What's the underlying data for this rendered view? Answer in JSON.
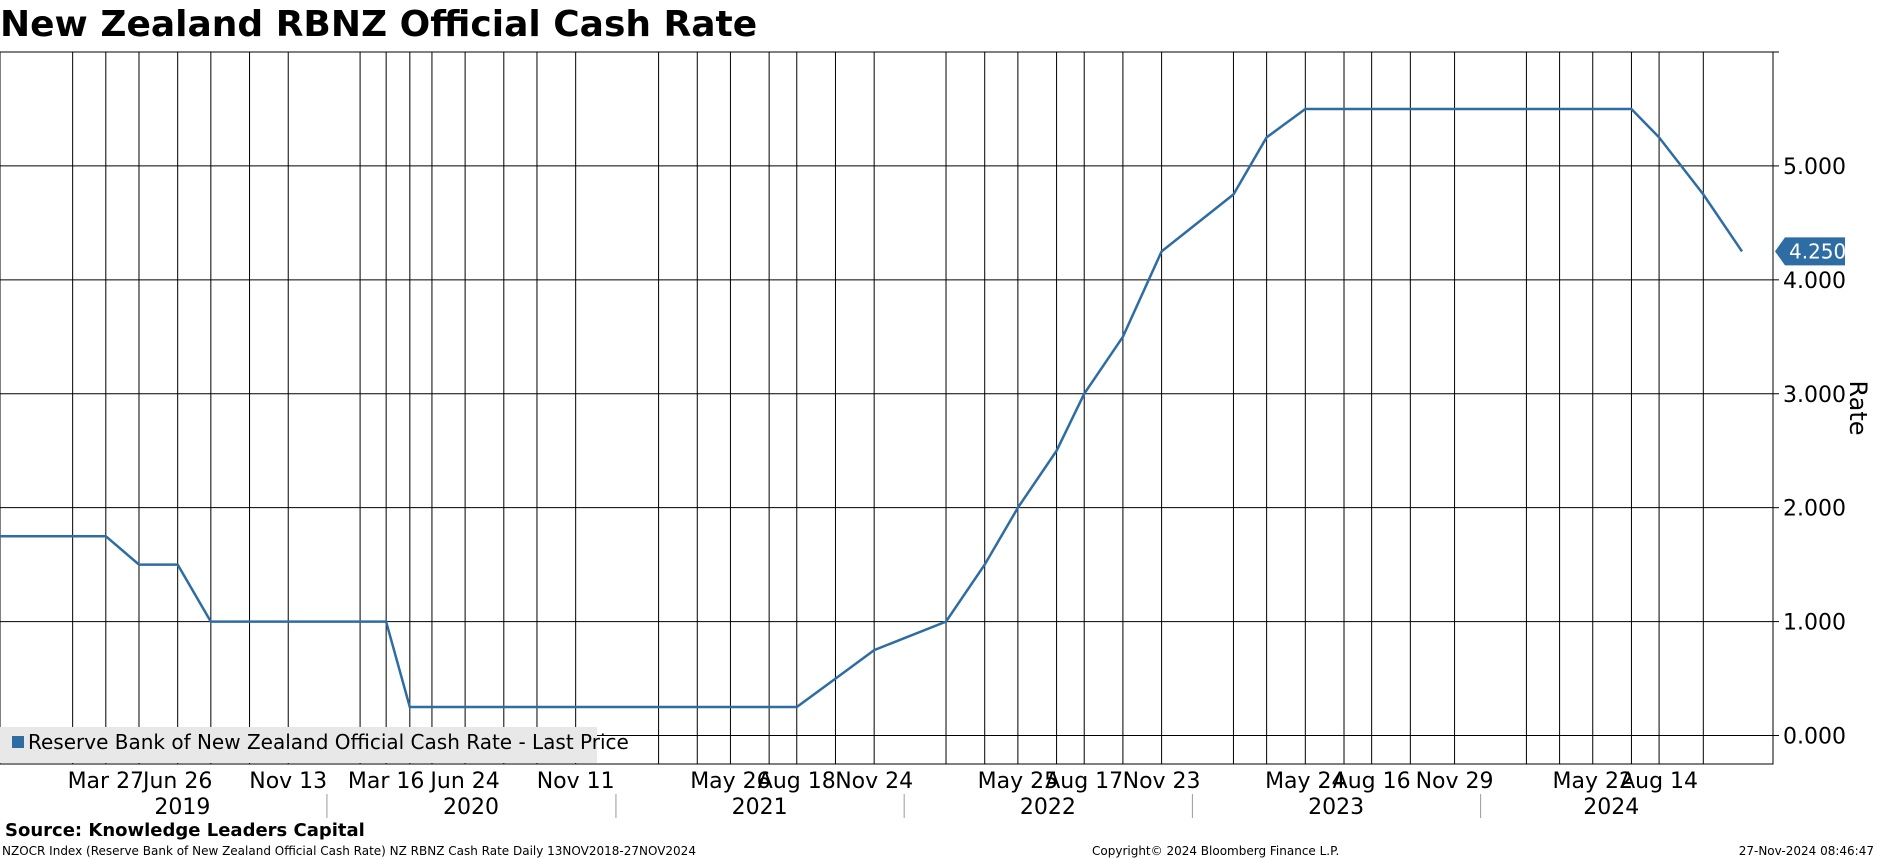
{
  "title": "New Zealand RBNZ Official Cash Rate",
  "source": "Source: Knowledge Leaders Capital",
  "footer": {
    "left": "NZOCR Index (Reserve Bank of New Zealand Official Cash Rate) NZ RBNZ Cash Rate  Daily 13NOV2018-27NOV2024",
    "center": "Copyright© 2024 Bloomberg Finance L.P.",
    "right": "27-Nov-2024 08:46:47"
  },
  "colors": {
    "series": "#2e6ca4",
    "grid": "#000000",
    "legend_bg": "#e8e8e8"
  },
  "chart_data": {
    "type": "line",
    "title": "New Zealand RBNZ Official Cash Rate",
    "xlabel": "",
    "ylabel": "Rate",
    "x_range": [
      "2018-11-13",
      "2024-11-27"
    ],
    "ylim": [
      -0.25,
      6.0
    ],
    "y_ticks": [
      0,
      1,
      2,
      3,
      4,
      5
    ],
    "y_tick_labels": [
      "0.000",
      "1.000",
      "2.000",
      "3.000",
      "4.000",
      "5.000"
    ],
    "grid": true,
    "legend_position": "bottom-left",
    "last_value_label": "4.250",
    "x_ticks": [
      {
        "date": "2019-03-27",
        "label": "Mar 27"
      },
      {
        "date": "2019-06-26",
        "label": "Jun 26"
      },
      {
        "date": "2019-11-13",
        "label": "Nov 13"
      },
      {
        "date": "2020-03-16",
        "label": "Mar 16"
      },
      {
        "date": "2020-06-24",
        "label": "Jun 24"
      },
      {
        "date": "2020-11-11",
        "label": "Nov 11"
      },
      {
        "date": "2021-05-26",
        "label": "May 26"
      },
      {
        "date": "2021-08-18",
        "label": "Aug 18"
      },
      {
        "date": "2021-11-24",
        "label": "Nov 24"
      },
      {
        "date": "2022-05-25",
        "label": "May 25"
      },
      {
        "date": "2022-08-17",
        "label": "Aug 17"
      },
      {
        "date": "2022-11-23",
        "label": "Nov 23"
      },
      {
        "date": "2023-05-24",
        "label": "May 24"
      },
      {
        "date": "2023-08-16",
        "label": "Aug 16"
      },
      {
        "date": "2023-11-29",
        "label": "Nov 29"
      },
      {
        "date": "2024-05-22",
        "label": "May 22"
      },
      {
        "date": "2024-08-14",
        "label": "Aug 14"
      }
    ],
    "grid_dates": [
      "2019-02-13",
      "2019-03-27",
      "2019-05-08",
      "2019-06-26",
      "2019-08-07",
      "2019-09-25",
      "2019-11-13",
      "2020-02-12",
      "2020-03-16",
      "2020-04-15",
      "2020-05-13",
      "2020-06-24",
      "2020-08-12",
      "2020-09-23",
      "2020-11-11",
      "2021-02-24",
      "2021-04-14",
      "2021-05-26",
      "2021-07-14",
      "2021-08-18",
      "2021-10-06",
      "2021-11-24",
      "2022-02-23",
      "2022-04-13",
      "2022-05-25",
      "2022-07-13",
      "2022-08-17",
      "2022-10-05",
      "2022-11-23",
      "2023-02-22",
      "2023-04-05",
      "2023-05-24",
      "2023-07-12",
      "2023-08-16",
      "2023-10-04",
      "2023-11-29",
      "2024-02-28",
      "2024-04-10",
      "2024-05-22",
      "2024-07-10",
      "2024-08-14",
      "2024-10-09"
    ],
    "years": [
      {
        "label": "2019",
        "start": "2019-01-01",
        "end": "2019-12-31"
      },
      {
        "label": "2020",
        "start": "2020-01-01",
        "end": "2020-12-31"
      },
      {
        "label": "2021",
        "start": "2021-01-01",
        "end": "2021-12-31"
      },
      {
        "label": "2022",
        "start": "2022-01-01",
        "end": "2022-12-31"
      },
      {
        "label": "2023",
        "start": "2023-01-01",
        "end": "2023-12-31"
      },
      {
        "label": "2024",
        "start": "2024-01-01",
        "end": "2024-12-31"
      }
    ],
    "series": [
      {
        "name": "Reserve Bank of New Zealand Official Cash Rate - Last Price",
        "points": [
          [
            "2018-11-13",
            1.75
          ],
          [
            "2019-03-27",
            1.75
          ],
          [
            "2019-05-08",
            1.5
          ],
          [
            "2019-06-26",
            1.5
          ],
          [
            "2019-08-07",
            1.0
          ],
          [
            "2020-03-16",
            1.0
          ],
          [
            "2020-04-15",
            0.25
          ],
          [
            "2021-08-18",
            0.25
          ],
          [
            "2021-10-06",
            0.5
          ],
          [
            "2021-11-24",
            0.75
          ],
          [
            "2022-02-23",
            1.0
          ],
          [
            "2022-04-13",
            1.5
          ],
          [
            "2022-05-25",
            2.0
          ],
          [
            "2022-07-13",
            2.5
          ],
          [
            "2022-08-17",
            3.0
          ],
          [
            "2022-10-05",
            3.5
          ],
          [
            "2022-11-23",
            4.25
          ],
          [
            "2023-02-22",
            4.75
          ],
          [
            "2023-04-05",
            5.25
          ],
          [
            "2023-05-24",
            5.5
          ],
          [
            "2024-07-10",
            5.5
          ],
          [
            "2024-08-14",
            5.25
          ],
          [
            "2024-10-09",
            4.75
          ],
          [
            "2024-11-27",
            4.25
          ]
        ]
      }
    ]
  }
}
